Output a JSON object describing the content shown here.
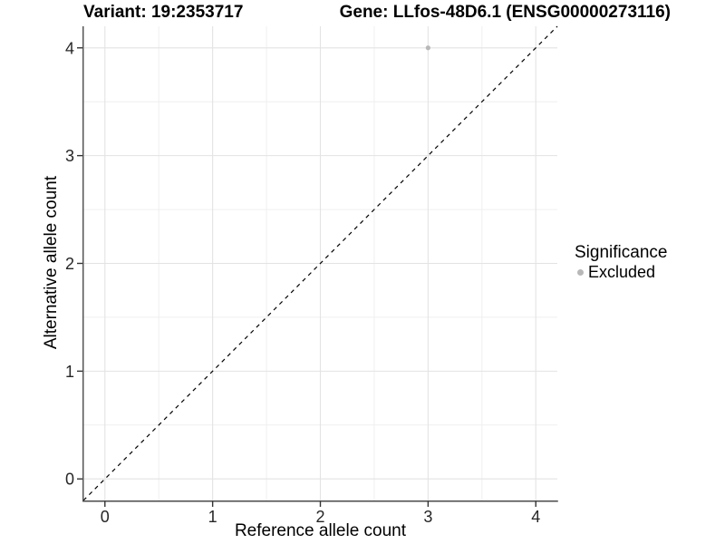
{
  "header": {
    "variant_title": "Variant: 19:2353717",
    "gene_title": "Gene: LLfos-48D6.1 (ENSG00000273116)"
  },
  "legend": {
    "title": "Significance",
    "items": [
      {
        "label": "Excluded",
        "color": "#b8b8b8"
      }
    ]
  },
  "colors": {
    "excluded_point": "#b8b8b8",
    "identity_line": "#000000",
    "axis_line": "#4a4a4a",
    "tick": "#333333",
    "tick_label": "#262626",
    "grid_major": "#e3e3e3",
    "grid_minor": "#efefef"
  },
  "chart_data": {
    "type": "scatter",
    "title": "Variant: 19:2353717 / Gene: LLfos-48D6.1 (ENSG00000273116)",
    "xlabel": "Reference allele count",
    "ylabel": "Alternative allele count",
    "xlim": [
      -0.2,
      4.2
    ],
    "ylim": [
      -0.2,
      4.2
    ],
    "x_ticks": [
      0,
      1,
      2,
      3,
      4
    ],
    "y_ticks": [
      0,
      1,
      2,
      3,
      4
    ],
    "grid": {
      "major": true,
      "minor": true
    },
    "legend_position": "right",
    "identity_line": {
      "style": "dashed",
      "from": [
        -0.2,
        -0.2
      ],
      "to": [
        4.2,
        4.2
      ]
    },
    "series": [
      {
        "name": "Excluded",
        "color": "#b8b8b8",
        "points": [
          {
            "x": 3,
            "y": 4
          }
        ]
      }
    ]
  }
}
